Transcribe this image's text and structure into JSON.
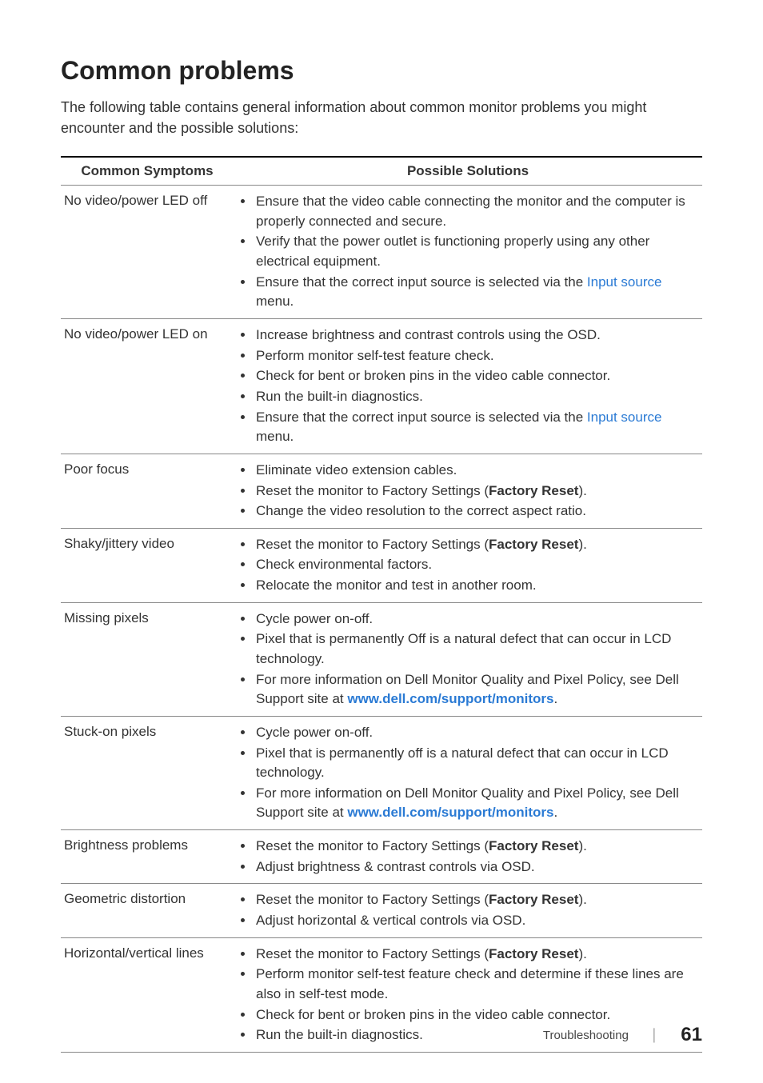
{
  "heading": "Common problems",
  "intro": "The following table contains general information about common monitor problems you might encounter and the possible solutions:",
  "table": {
    "col1": "Common Symptoms",
    "col2": "Possible Solutions"
  },
  "rows": [
    {
      "symptom": "No video/power LED off",
      "items": [
        {
          "segments": [
            {
              "t": "Ensure that the video cable connecting the monitor and the computer is properly connected and secure."
            }
          ]
        },
        {
          "segments": [
            {
              "t": "Verify that the power outlet is functioning properly using any other electrical equipment."
            }
          ]
        },
        {
          "segments": [
            {
              "t": "Ensure that the correct input source is selected via the "
            },
            {
              "t": "Input source",
              "cls": "link"
            },
            {
              "t": " menu."
            }
          ]
        }
      ]
    },
    {
      "symptom": "No video/power LED on",
      "items": [
        {
          "segments": [
            {
              "t": "Increase brightness and contrast controls using the OSD."
            }
          ]
        },
        {
          "segments": [
            {
              "t": "Perform monitor self-test feature check."
            }
          ]
        },
        {
          "segments": [
            {
              "t": "Check for bent or broken pins in the video cable connector."
            }
          ]
        },
        {
          "segments": [
            {
              "t": "Run the built-in diagnostics."
            }
          ]
        },
        {
          "segments": [
            {
              "t": "Ensure that the correct input source is selected via the "
            },
            {
              "t": "Input source",
              "cls": "link"
            },
            {
              "t": " menu."
            }
          ]
        }
      ]
    },
    {
      "symptom": "Poor focus",
      "items": [
        {
          "segments": [
            {
              "t": "Eliminate video extension cables."
            }
          ]
        },
        {
          "segments": [
            {
              "t": "Reset the monitor to Factory Settings ("
            },
            {
              "t": "Factory Reset",
              "b": true
            },
            {
              "t": ")."
            }
          ]
        },
        {
          "segments": [
            {
              "t": "Change the video resolution to the correct aspect ratio."
            }
          ]
        }
      ]
    },
    {
      "symptom": "Shaky/jittery video",
      "items": [
        {
          "segments": [
            {
              "t": "Reset the monitor to Factory Settings ("
            },
            {
              "t": "Factory Reset",
              "b": true
            },
            {
              "t": ")."
            }
          ]
        },
        {
          "segments": [
            {
              "t": "Check environmental factors."
            }
          ]
        },
        {
          "segments": [
            {
              "t": "Relocate the monitor and test in another room."
            }
          ]
        }
      ]
    },
    {
      "symptom": "Missing pixels",
      "items": [
        {
          "segments": [
            {
              "t": "Cycle power on-off."
            }
          ]
        },
        {
          "segments": [
            {
              "t": "Pixel that is permanently Off is a natural defect that can occur in LCD technology."
            }
          ]
        },
        {
          "segments": [
            {
              "t": "For more information on Dell Monitor Quality and Pixel Policy, see Dell Support site at "
            },
            {
              "t": "www.dell.com/support/monitors",
              "cls": "boldlink"
            },
            {
              "t": "."
            }
          ]
        }
      ]
    },
    {
      "symptom": "Stuck-on pixels",
      "items": [
        {
          "segments": [
            {
              "t": "Cycle power on-off."
            }
          ]
        },
        {
          "segments": [
            {
              "t": "Pixel that is permanently off is a natural defect that can occur in LCD technology."
            }
          ]
        },
        {
          "segments": [
            {
              "t": "For more information on Dell Monitor Quality and Pixel Policy, see Dell Support site at "
            },
            {
              "t": "www.dell.com/support/monitors",
              "cls": "boldlink"
            },
            {
              "t": "."
            }
          ]
        }
      ]
    },
    {
      "symptom": "Brightness problems",
      "items": [
        {
          "segments": [
            {
              "t": "Reset the monitor to Factory Settings ("
            },
            {
              "t": "Factory Reset",
              "b": true
            },
            {
              "t": ")."
            }
          ]
        },
        {
          "segments": [
            {
              "t": "Adjust brightness & contrast controls via OSD."
            }
          ]
        }
      ]
    },
    {
      "symptom": "Geometric distortion",
      "items": [
        {
          "segments": [
            {
              "t": "Reset the monitor to Factory Settings ("
            },
            {
              "t": "Factory Reset",
              "b": true
            },
            {
              "t": ")."
            }
          ]
        },
        {
          "segments": [
            {
              "t": "Adjust horizontal & vertical controls via OSD."
            }
          ]
        }
      ]
    },
    {
      "symptom": "Horizontal/vertical lines",
      "items": [
        {
          "segments": [
            {
              "t": "Reset the monitor to Factory Settings ("
            },
            {
              "t": "Factory Reset",
              "b": true
            },
            {
              "t": ")."
            }
          ]
        },
        {
          "segments": [
            {
              "t": "Perform monitor self-test feature check and determine if these lines are also in self-test mode."
            }
          ]
        },
        {
          "segments": [
            {
              "t": "Check for bent or broken pins in the video cable connector."
            }
          ]
        },
        {
          "segments": [
            {
              "t": "Run the built-in diagnostics."
            }
          ]
        }
      ]
    }
  ],
  "footer": {
    "section": "Troubleshooting",
    "page": "61"
  }
}
